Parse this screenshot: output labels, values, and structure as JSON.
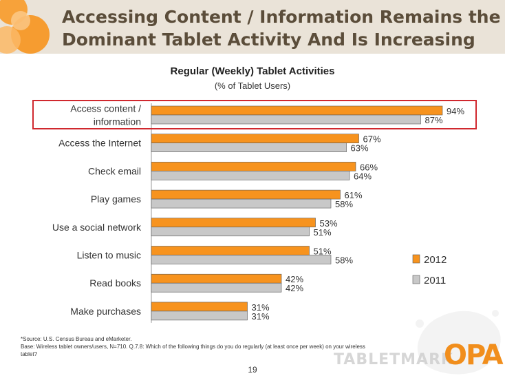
{
  "slide": {
    "title_line1": "Accessing Content / Information Remains the",
    "title_line2": "Dominant Tablet Activity And Is Increasing",
    "page_number": "19",
    "footnote_line1": "*Source: U.S. Census Bureau and eMarketer.",
    "footnote_line2": "Base:   Wireless tablet owners/users, N=710.  Q.7.8:  Which of the following things do you do regularly (at least once per week) on your wireless",
    "footnote_line3": "tablet?",
    "watermark_text": "TABLETMARK",
    "logo_text": "OPA"
  },
  "chart_data": {
    "type": "bar",
    "orientation": "horizontal",
    "title": "Regular (Weekly) Tablet Activities",
    "subtitle": "(% of Tablet Users)",
    "categories": [
      "Access content / information",
      "Access the Internet",
      "Check email",
      "Play games",
      "Use a social network",
      "Listen to music",
      "Read books",
      "Make purchases"
    ],
    "category_lines": [
      [
        "Access content /",
        "information"
      ],
      [
        "Access the Internet"
      ],
      [
        "Check email"
      ],
      [
        "Play games"
      ],
      [
        "Use a social network"
      ],
      [
        "Listen to music"
      ],
      [
        "Read books"
      ],
      [
        "Make purchases"
      ]
    ],
    "series": [
      {
        "name": "2012",
        "color": "#f7931e",
        "values": [
          94,
          67,
          66,
          61,
          53,
          51,
          42,
          31
        ]
      },
      {
        "name": "2011",
        "color": "#c8c8c8",
        "values": [
          87,
          63,
          64,
          58,
          51,
          58,
          42,
          31
        ]
      }
    ],
    "value_suffix": "%",
    "xlim": [
      0,
      100
    ],
    "grid": false,
    "legend_position": "right",
    "highlighted_category": "Access content / information"
  }
}
